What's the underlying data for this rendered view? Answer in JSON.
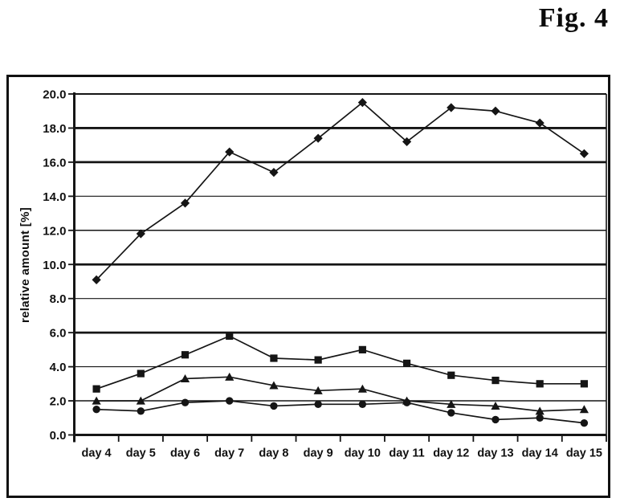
{
  "figure": {
    "title": "Fig. 4"
  },
  "chart_data": {
    "type": "line",
    "title": "",
    "xlabel": "",
    "ylabel": "relative amount [%]",
    "ylim": [
      0,
      20
    ],
    "ytick_step": 2,
    "ytick_labels": [
      "0.0",
      "2.0",
      "4.0",
      "6.0",
      "8.0",
      "10.0",
      "12.0",
      "14.0",
      "16.0",
      "18.0",
      "20.0"
    ],
    "categories": [
      "day 4",
      "day 5",
      "day 6",
      "day 7",
      "day 8",
      "day 9",
      "day 10",
      "day 11",
      "day 12",
      "day 13",
      "day 14",
      "day 15"
    ],
    "series": [
      {
        "name": "series 1",
        "marker": "diamond",
        "values": [
          9.1,
          11.8,
          13.6,
          16.6,
          15.4,
          17.4,
          19.5,
          17.2,
          19.2,
          19.0,
          18.3,
          16.5
        ]
      },
      {
        "name": "series 2",
        "marker": "square",
        "values": [
          2.7,
          3.6,
          4.7,
          5.8,
          4.5,
          4.4,
          5.0,
          4.2,
          3.5,
          3.2,
          3.0,
          3.0
        ]
      },
      {
        "name": "series 3",
        "marker": "triangle",
        "values": [
          2.0,
          2.0,
          3.3,
          3.4,
          2.9,
          2.6,
          2.7,
          2.0,
          1.8,
          1.7,
          1.4,
          1.5
        ]
      },
      {
        "name": "series 4",
        "marker": "circle",
        "values": [
          1.5,
          1.4,
          1.9,
          2.0,
          1.7,
          1.8,
          1.8,
          1.9,
          1.3,
          0.9,
          1.0,
          0.7
        ]
      }
    ],
    "grid": "horizontal",
    "heavy_gridlines": [
      6,
      10,
      16,
      18
    ],
    "legend": "none",
    "line_color": "#151515",
    "background_color": "#ffffff"
  }
}
